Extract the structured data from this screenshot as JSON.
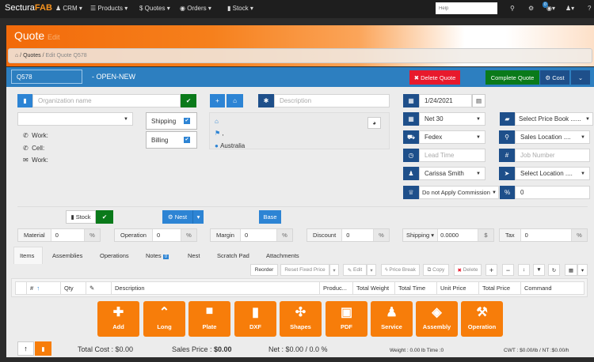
{
  "nav": {
    "brand_a": "Sectura",
    "brand_b": "FAB",
    "items": [
      "CRM",
      "Products",
      "Quotes",
      "Orders",
      "Stock"
    ],
    "help_placeholder": "Help",
    "notif_count": "0"
  },
  "header": {
    "title": "Quote",
    "subtitle": "Edit",
    "breadcrumb": [
      "Quotes",
      "Edit Quote Q578"
    ]
  },
  "quotebar": {
    "number": "Q578",
    "status": "- OPEN-NEW",
    "delete": "Delete Quote",
    "complete": "Complete Quote",
    "cost": "Cost"
  },
  "customer": {
    "org_placeholder": "Organization name",
    "work_phone": "Work:",
    "cell": "Cell:",
    "work_email": "Work:",
    "shipping": "Shipping",
    "billing": "Billing",
    "shipping_checked": true,
    "billing_checked": true
  },
  "address": {
    "line2": ",",
    "country": "Australia"
  },
  "fields": {
    "description_placeholder": "Description",
    "date": "1/24/2021",
    "terms": "Net 30",
    "carrier": "Fedex",
    "lead_time_placeholder": "Lead Time",
    "salesperson": "Carissa Smith",
    "commission": "Do not Apply Commission",
    "price_book": "Select Price Book ......",
    "sales_location": "Sales Location ....",
    "job_number_placeholder": "Job Number",
    "location": "Select Location ....",
    "commission_pct": "0"
  },
  "actions": {
    "stock": "Stock",
    "nest": "Nest",
    "base": "Base"
  },
  "adjust": [
    {
      "label": "Material",
      "value": "0",
      "unit": "%"
    },
    {
      "label": "Operation",
      "value": "0",
      "unit": "%"
    },
    {
      "label": "Margin",
      "value": "0",
      "unit": "%"
    },
    {
      "label": "Discount",
      "value": "0",
      "unit": "%"
    },
    {
      "label": "Shipping",
      "value": "0.0000",
      "unit": "$"
    },
    {
      "label": "Tax",
      "value": "0",
      "unit": "%"
    }
  ],
  "tabs": [
    {
      "label": "Items"
    },
    {
      "label": "Assemblies"
    },
    {
      "label": "Operations"
    },
    {
      "label": "Notes",
      "badge": "0"
    },
    {
      "label": "Nest"
    },
    {
      "label": "Scratch Pad"
    },
    {
      "label": "Attachments"
    }
  ],
  "toolbar": [
    "Reorder",
    "Reset Fixed Price",
    "Edit",
    "Price Break",
    "Copy",
    "Delete"
  ],
  "columns": [
    "#",
    "Qty",
    "",
    "Description",
    "Produc...",
    "Total Weight",
    "Total Time",
    "Unit Price",
    "Total Price",
    "Command"
  ],
  "add_buttons": [
    "Add",
    "Long",
    "Plate",
    "DXF",
    "Shapes",
    "PDF",
    "Service",
    "Assembly",
    "Operation"
  ],
  "footer": {
    "total_cost": "Total Cost : $0.00",
    "sales_price_label": "Sales Price : ",
    "sales_price": "$0.00",
    "net": "Net : $0.00 / 0.0 %",
    "weight": "Weight : 0.00 lb Time :0",
    "cwt": "CWT : $0.00/lb / NT :$0.00/h"
  },
  "colors": {
    "orange": "#f77d0a",
    "blue": "#2d7fc0",
    "navy": "#1e4f8a",
    "green": "#0a7a1a",
    "red": "#e8192c"
  }
}
